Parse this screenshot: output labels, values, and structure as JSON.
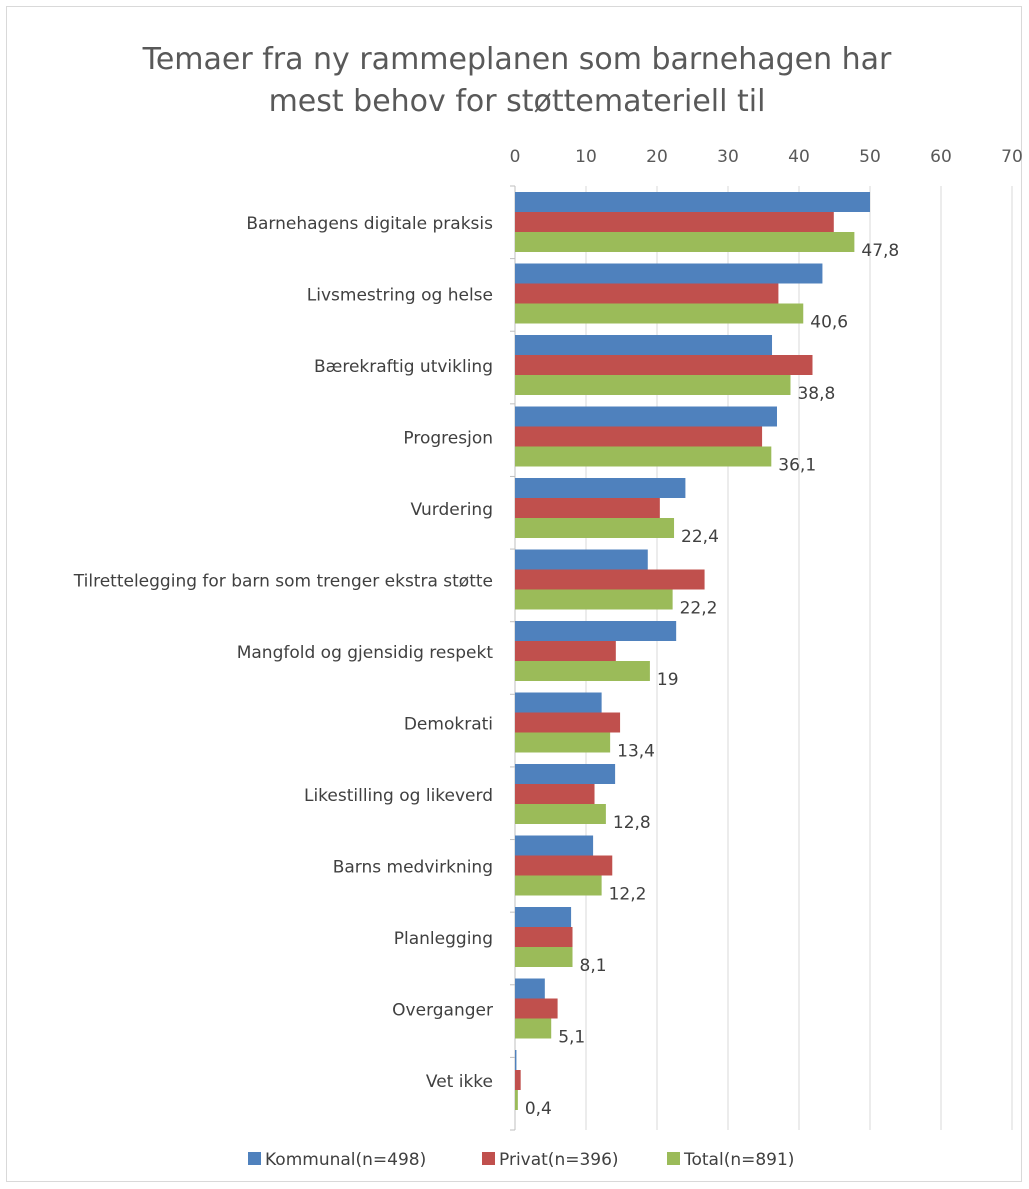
{
  "chart_data": {
    "type": "bar",
    "orientation": "horizontal",
    "title_lines": [
      "Temaer fra ny rammeplanen som barnehagen har",
      "mest behov for støttemateriell til"
    ],
    "xlim": [
      0,
      70
    ],
    "ticks": [
      0,
      10,
      20,
      30,
      40,
      50,
      60,
      70
    ],
    "tick_labels": [
      "0",
      "10",
      "20",
      "30",
      "40",
      "50",
      "60",
      "70"
    ],
    "grid": true,
    "legend_position": "bottom",
    "categories": [
      "Barnehagens digitale praksis",
      "Livsmestring og helse",
      "Bærekraftig utvikling",
      "Progresjon",
      "Vurdering",
      "Tilrettelegging for barn som trenger ekstra støtte",
      "Mangfold og gjensidig respekt",
      "Demokrati",
      "Likestilling og likeverd",
      "Barns medvirkning",
      "Planlegging",
      "Overganger",
      "Vet ikke"
    ],
    "series": [
      {
        "name": "Kommunal(n=498)",
        "color": "#4f81bd",
        "values": [
          50.0,
          43.3,
          36.2,
          36.9,
          24.0,
          18.7,
          22.7,
          12.2,
          14.1,
          11.0,
          7.9,
          4.2,
          0.2
        ]
      },
      {
        "name": "Privat(n=396)",
        "color": "#c0504d",
        "values": [
          44.9,
          37.1,
          41.9,
          34.8,
          20.4,
          26.7,
          14.2,
          14.8,
          11.2,
          13.7,
          8.1,
          6.0,
          0.8
        ]
      },
      {
        "name": "Total(n=891)",
        "color": "#9bbb59",
        "values": [
          47.8,
          40.6,
          38.8,
          36.1,
          22.4,
          22.2,
          19.0,
          13.4,
          12.8,
          12.2,
          8.1,
          5.1,
          0.4
        ]
      }
    ],
    "data_labels": [
      "47,8",
      "40,6",
      "38,8",
      "36,1",
      "22,4",
      "22,2",
      "19",
      "13,4",
      "12,8",
      "12,2",
      "8,1",
      "5,1",
      "0,4"
    ]
  }
}
